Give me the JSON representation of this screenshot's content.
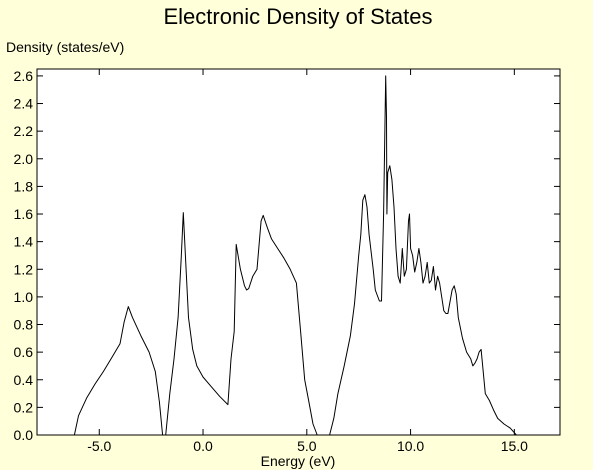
{
  "chart_data": {
    "type": "line",
    "title": "Electronic Density of States",
    "xlabel": "Energy (eV)",
    "ylabel": "Density (states/eV)",
    "xlim": [
      -8.0,
      17.2
    ],
    "ylim": [
      0.0,
      2.65
    ],
    "x_ticks": [
      -5.0,
      0.0,
      5.0,
      10.0,
      15.0
    ],
    "x_tick_labels": [
      "-5.0",
      "0.0",
      "5.0",
      "10.0",
      "15.0"
    ],
    "y_ticks": [
      0.0,
      0.2,
      0.4,
      0.6,
      0.8,
      1.0,
      1.2,
      1.4,
      1.6,
      1.8,
      2.0,
      2.2,
      2.4,
      2.6
    ],
    "y_tick_labels": [
      "0.0",
      "0.2",
      "0.4",
      "0.6",
      "0.8",
      "1.0",
      "1.2",
      "1.4",
      "1.6",
      "1.8",
      "2.0",
      "2.2",
      "2.4",
      "2.6"
    ],
    "grid": false,
    "legend": "none",
    "colors": {
      "background": "#FFFFD9",
      "plot_area": "#FFFFFF",
      "line": "#000000"
    },
    "series": [
      {
        "x": [
          -6.2,
          -6.0,
          -5.6,
          -5.2,
          -4.8,
          -4.4,
          -4.0,
          -3.8,
          -3.6,
          -3.4,
          -3.0,
          -2.6,
          -2.3,
          -2.1,
          -1.95,
          -1.8,
          -1.6,
          -1.4,
          -1.2,
          -1.05,
          -0.95,
          -0.85,
          -0.7,
          -0.5,
          -0.3,
          0.0,
          0.4,
          0.8,
          1.2,
          1.35,
          1.5,
          1.6,
          1.8,
          2.0,
          2.1,
          2.2,
          2.4,
          2.6,
          2.8,
          2.9,
          3.1,
          3.3,
          3.6,
          3.9,
          4.2,
          4.5,
          4.7,
          4.9,
          5.1,
          5.3,
          5.5,
          5.7,
          5.9,
          6.1,
          6.3,
          6.5,
          6.8,
          7.1,
          7.3,
          7.5,
          7.6,
          7.7,
          7.8,
          7.9,
          8.0,
          8.2,
          8.3,
          8.5,
          8.6,
          8.7,
          8.8,
          8.82,
          8.84,
          8.86,
          8.9,
          9.0,
          9.1,
          9.2,
          9.3,
          9.4,
          9.5,
          9.6,
          9.7,
          9.8,
          9.9,
          9.95,
          10.0,
          10.1,
          10.2,
          10.3,
          10.4,
          10.5,
          10.6,
          10.7,
          10.8,
          10.9,
          11.0,
          11.1,
          11.2,
          11.3,
          11.4,
          11.5,
          11.6,
          11.7,
          11.8,
          12.0,
          12.1,
          12.2,
          12.3,
          12.5,
          12.7,
          12.9,
          13.0,
          13.1,
          13.2,
          13.3,
          13.4,
          13.6,
          13.8,
          14.0,
          14.2,
          14.5,
          14.8,
          15.1,
          15.3
        ],
        "y": [
          0.0,
          0.14,
          0.27,
          0.37,
          0.46,
          0.56,
          0.66,
          0.82,
          0.93,
          0.85,
          0.72,
          0.6,
          0.46,
          0.24,
          0.0,
          0.0,
          0.3,
          0.55,
          0.85,
          1.28,
          1.61,
          1.3,
          0.85,
          0.62,
          0.5,
          0.42,
          0.35,
          0.28,
          0.22,
          0.55,
          0.75,
          1.38,
          1.2,
          1.08,
          1.05,
          1.06,
          1.15,
          1.2,
          1.55,
          1.59,
          1.5,
          1.42,
          1.35,
          1.28,
          1.2,
          1.1,
          0.75,
          0.4,
          0.24,
          0.08,
          0.0,
          0.0,
          0.0,
          0.0,
          0.12,
          0.3,
          0.5,
          0.72,
          0.95,
          1.3,
          1.45,
          1.7,
          1.74,
          1.65,
          1.45,
          1.2,
          1.05,
          0.97,
          0.97,
          1.6,
          2.6,
          2.45,
          2.3,
          1.6,
          1.9,
          1.95,
          1.85,
          1.65,
          1.35,
          1.15,
          1.1,
          1.35,
          1.15,
          1.2,
          1.55,
          1.6,
          1.35,
          1.3,
          1.18,
          1.25,
          1.35,
          1.25,
          1.1,
          1.15,
          1.25,
          1.1,
          1.12,
          1.22,
          1.05,
          1.15,
          1.1,
          1.0,
          0.9,
          0.88,
          0.88,
          1.05,
          1.08,
          1.02,
          0.85,
          0.7,
          0.6,
          0.55,
          0.5,
          0.52,
          0.55,
          0.6,
          0.62,
          0.3,
          0.25,
          0.18,
          0.12,
          0.08,
          0.05,
          0.0,
          0.0
        ]
      }
    ]
  }
}
